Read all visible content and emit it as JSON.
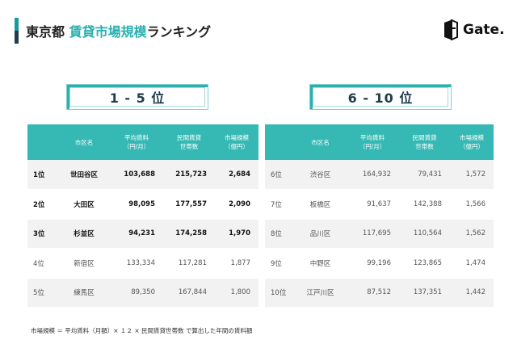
{
  "header": {
    "title_prefix": "東京都",
    "title_accent": "賃貸市場規模",
    "title_suffix": "ランキング"
  },
  "logo": {
    "text": "Gate."
  },
  "left_panel": {
    "label": "1 - 5 位",
    "headers": [
      "",
      "市区名",
      "平均賃料\n（円/月）",
      "民間賃貸\n世帯数",
      "市場規模\n（億円）"
    ],
    "rows": [
      {
        "rank": "1位",
        "name": "世田谷区",
        "rent": "103,688",
        "households": "215,723",
        "market": "2,684"
      },
      {
        "rank": "2位",
        "name": "大田区",
        "rent": "98,095",
        "households": "177,557",
        "market": "2,090"
      },
      {
        "rank": "3位",
        "name": "杉並区",
        "rent": "94,231",
        "households": "174,258",
        "market": "1,970"
      },
      {
        "rank": "4位",
        "name": "新宿区",
        "rent": "133,334",
        "households": "117,281",
        "market": "1,877"
      },
      {
        "rank": "5位",
        "name": "練馬区",
        "rent": "89,350",
        "households": "167,844",
        "market": "1,800"
      }
    ]
  },
  "right_panel": {
    "label": "6 - 10 位",
    "headers": [
      "",
      "市区名",
      "平均賃料\n（円/月）",
      "民間賃貸\n世帯数",
      "市場規模\n（億円）"
    ],
    "rows": [
      {
        "rank": "6位",
        "name": "渋谷区",
        "rent": "164,932",
        "households": "79,431",
        "market": "1,572"
      },
      {
        "rank": "7位",
        "name": "板橋区",
        "rent": "91,637",
        "households": "142,388",
        "market": "1,566"
      },
      {
        "rank": "8位",
        "name": "品川区",
        "rent": "117,695",
        "households": "110,564",
        "market": "1,562"
      },
      {
        "rank": "9位",
        "name": "中野区",
        "rent": "99,196",
        "households": "123,865",
        "market": "1,474"
      },
      {
        "rank": "10位",
        "name": "江戸川区",
        "rent": "87,512",
        "households": "137,351",
        "market": "1,442"
      }
    ]
  },
  "footnote": "市場規模 ＝ 平均賃料（月額）× １２ × 民間賃貸世帯数 で算出した年間の賃料額",
  "colors": {
    "accent": "#36b9b4",
    "dark": "#1f3d4a",
    "row_alt": "#f2f2f2"
  }
}
